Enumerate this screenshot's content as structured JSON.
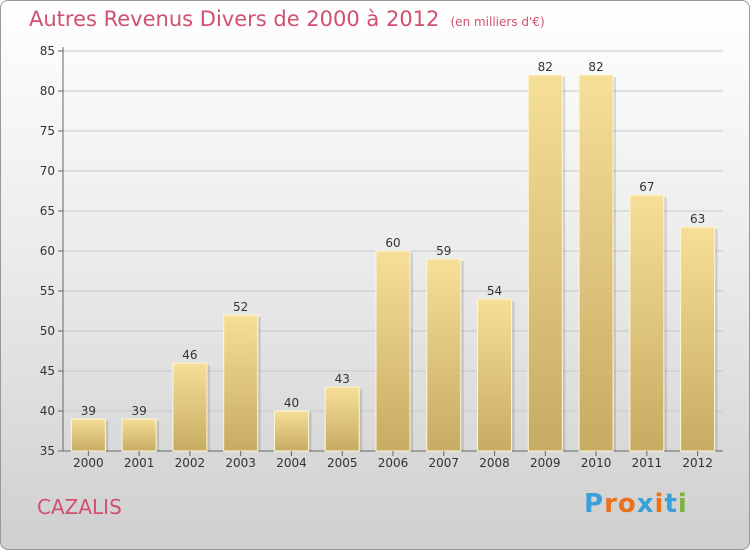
{
  "header": {
    "title": "Autres Revenus Divers de 2000 à 2012",
    "unit": "(en milliers d'€)"
  },
  "footer": {
    "commune": "CAZALIS",
    "logo_text": "Proxiti"
  },
  "colors": {
    "title": "#d1506e",
    "bar_top": "#f6df98",
    "bar_bottom": "#c7ab62",
    "logo": [
      "#3aa0d8",
      "#e8731b",
      "#e8731b",
      "#3aa0d8",
      "#e8731b",
      "#3aa0d8",
      "#7cb340"
    ]
  },
  "chart_data": {
    "type": "bar",
    "title": "Autres Revenus Divers de 2000 à 2012",
    "xlabel": "",
    "ylabel": "",
    "categories": [
      "2000",
      "2001",
      "2002",
      "2003",
      "2004",
      "2005",
      "2006",
      "2007",
      "2008",
      "2009",
      "2010",
      "2011",
      "2012"
    ],
    "values": [
      39,
      39,
      46,
      52,
      40,
      43,
      60,
      59,
      54,
      82,
      82,
      67,
      63
    ],
    "ylim": [
      35,
      85
    ],
    "yticks": [
      35,
      40,
      45,
      50,
      55,
      60,
      65,
      70,
      75,
      80,
      85
    ],
    "grid": true,
    "legend": "none"
  }
}
